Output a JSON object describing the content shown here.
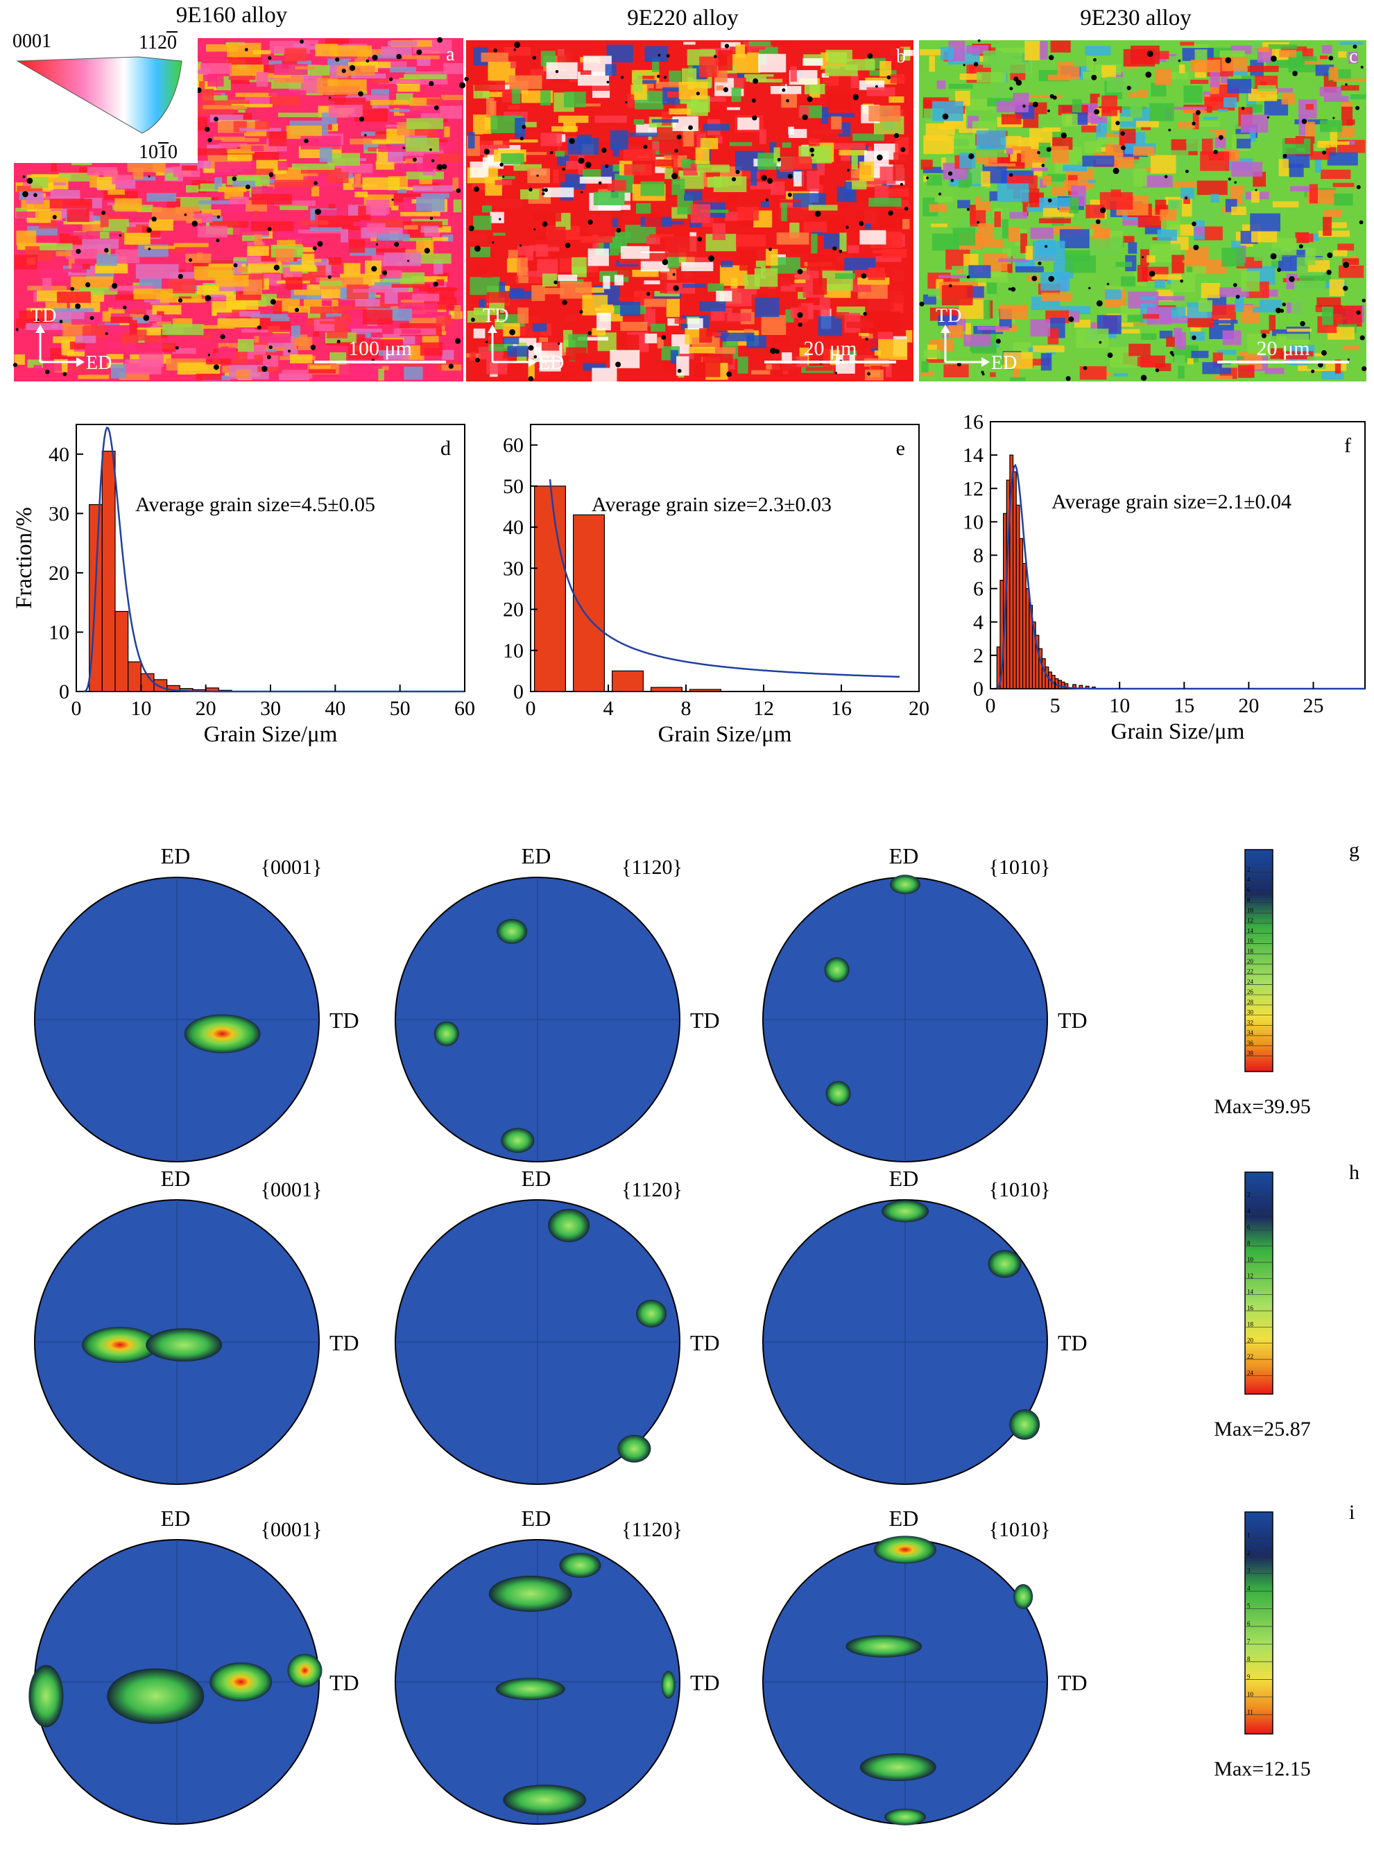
{
  "ebsd": {
    "maps": [
      {
        "title": "9E160 alloy",
        "label": "a",
        "scale": "100 μm"
      },
      {
        "title": "9E220 alloy",
        "label": "b",
        "scale": "20 μm"
      },
      {
        "title": "9E230 alloy",
        "label": "c",
        "scale": "20 μm"
      }
    ],
    "axis_td": "TD",
    "axis_ed": "ED",
    "ipf_key": {
      "top_left": "0001",
      "top_right": "1120",
      "bottom": "1010"
    }
  },
  "chart_data": [
    {
      "type": "bar",
      "label": "d",
      "annotation": "Average grain size=4.5±0.05",
      "xlabel": "Grain Size/μm",
      "ylabel": "Fraction/%",
      "xlim": [
        0,
        60
      ],
      "ylim": [
        0,
        45
      ],
      "xticks": [
        0,
        10,
        20,
        30,
        40,
        50,
        60
      ],
      "yticks": [
        0,
        10,
        20,
        30,
        40
      ],
      "bin_width": 2.0,
      "x": [
        3,
        5,
        7,
        9,
        11,
        13,
        15,
        17,
        19,
        21,
        23
      ],
      "values": [
        31.5,
        40.5,
        13.5,
        5,
        3,
        2,
        1,
        0.5,
        0.3,
        0.6,
        0.2
      ],
      "fit": {
        "type": "lognormal",
        "peak_x": 4.8,
        "peak_y": 44.5,
        "sigma": 0.35,
        "x_start": 1,
        "x_end": 60
      }
    },
    {
      "type": "bar",
      "label": "e",
      "annotation": "Average grain size=2.3±0.03",
      "xlabel": "Grain Size/μm",
      "ylabel": "",
      "xlim": [
        0,
        20
      ],
      "ylim": [
        0,
        65
      ],
      "xticks": [
        0,
        4,
        8,
        12,
        16,
        20
      ],
      "yticks": [
        0,
        10,
        20,
        30,
        40,
        50,
        60
      ],
      "bin_width": 1.6,
      "x": [
        1.0,
        3.0,
        5.0,
        7.0,
        9.0
      ],
      "values": [
        50,
        43,
        5,
        1,
        0.5
      ],
      "fit": {
        "type": "decay",
        "x_start": 1.0,
        "x_end": 19,
        "y_at_start": 54,
        "y_at_end": 3
      }
    },
    {
      "type": "bar",
      "label": "f",
      "annotation": "Average grain size=2.1±0.04",
      "xlabel": "Grain Size/μm",
      "ylabel": "",
      "xlim": [
        0,
        29
      ],
      "ylim": [
        0,
        16
      ],
      "xticks": [
        0,
        5,
        10,
        15,
        20,
        25
      ],
      "yticks": [
        0,
        2,
        4,
        6,
        8,
        10,
        12,
        14,
        16
      ],
      "bin_width": 0.25,
      "x": [
        0.625,
        0.875,
        1.125,
        1.375,
        1.625,
        1.875,
        2.125,
        2.375,
        2.625,
        2.875,
        3.125,
        3.375,
        3.625,
        3.875,
        4.125,
        4.375,
        4.625,
        4.875,
        5.125,
        5.375,
        5.625,
        5.875,
        6.5,
        7,
        7.5,
        8
      ],
      "values": [
        2.5,
        6.5,
        10.5,
        12.5,
        14,
        13,
        11,
        9,
        7.5,
        6,
        5,
        4,
        3.2,
        2.4,
        1.8,
        1.3,
        1,
        0.8,
        0.6,
        0.5,
        0.4,
        0.3,
        0.25,
        0.2,
        0.15,
        0.1
      ],
      "fit": {
        "type": "lognormal",
        "peak_x": 1.9,
        "peak_y": 13.4,
        "sigma": 0.35,
        "x_start": 0.3,
        "x_end": 29
      }
    }
  ],
  "pole_figures": {
    "ed_label": "ED",
    "td_label": "TD",
    "planes": [
      "{0001}",
      "{1120}",
      "{1010}"
    ],
    "rows": [
      {
        "label": "g",
        "max": "Max=39.95",
        "scale_ticks": [
          "2",
          "4",
          "6",
          "8",
          "10",
          "12",
          "14",
          "16",
          "18",
          "20",
          "22",
          "24",
          "26",
          "28",
          "30",
          "32",
          "34",
          "36",
          "38"
        ]
      },
      {
        "label": "h",
        "max": "Max=25.87",
        "scale_ticks": [
          "2",
          "4",
          "6",
          "8",
          "10",
          "12",
          "14",
          "16",
          "18",
          "20",
          "22",
          "24"
        ]
      },
      {
        "label": "i",
        "max": "Max=12.15",
        "scale_ticks": [
          "1",
          "2",
          "3",
          "4",
          "5",
          "6",
          "7",
          "8",
          "9",
          "10",
          "11"
        ]
      }
    ]
  }
}
